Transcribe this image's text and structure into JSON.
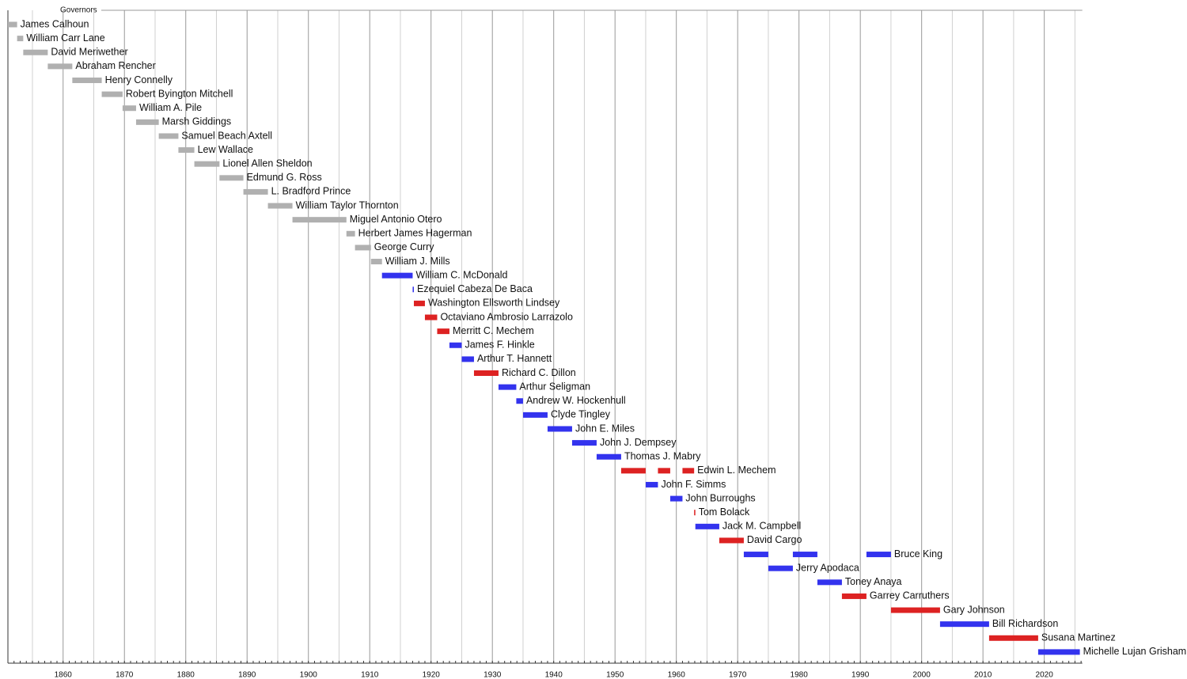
{
  "chart_data": {
    "type": "timeline",
    "title": "Governors",
    "xlim": [
      1851,
      2026.2
    ],
    "xticks": [
      1860,
      1870,
      1880,
      1890,
      1900,
      1910,
      1920,
      1930,
      1940,
      1950,
      1960,
      1970,
      1980,
      1990,
      2000,
      2010,
      2020
    ],
    "xminorticks": [
      1855,
      1865,
      1875,
      1885,
      1895,
      1905,
      1915,
      1925,
      1935,
      1945,
      1955,
      1965,
      1975,
      1985,
      1995,
      2005,
      2015,
      2025
    ],
    "small_tick_interval": 1,
    "grid": true,
    "rows": [
      {
        "label": "James Calhoun",
        "color": "#b0b0b0",
        "terms": [
          [
            1851,
            1852.5
          ]
        ]
      },
      {
        "label": "William Carr Lane",
        "color": "#b0b0b0",
        "terms": [
          [
            1852.5,
            1853.5
          ]
        ]
      },
      {
        "label": "David Meriwether",
        "color": "#b0b0b0",
        "terms": [
          [
            1853.5,
            1857.5
          ]
        ]
      },
      {
        "label": "Abraham Rencher",
        "color": "#b0b0b0",
        "terms": [
          [
            1857.5,
            1861.5
          ]
        ]
      },
      {
        "label": "Henry Connelly",
        "color": "#b0b0b0",
        "terms": [
          [
            1861.5,
            1866.3
          ]
        ]
      },
      {
        "label": "Robert Byington Mitchell",
        "color": "#b0b0b0",
        "terms": [
          [
            1866.3,
            1869.7
          ]
        ]
      },
      {
        "label": "William A. Pile",
        "color": "#b0b0b0",
        "terms": [
          [
            1869.7,
            1871.9
          ]
        ]
      },
      {
        "label": "Marsh Giddings",
        "color": "#b0b0b0",
        "terms": [
          [
            1871.9,
            1875.6
          ]
        ]
      },
      {
        "label": "Samuel Beach Axtell",
        "color": "#b0b0b0",
        "terms": [
          [
            1875.6,
            1878.8
          ]
        ]
      },
      {
        "label": "Lew Wallace",
        "color": "#b0b0b0",
        "terms": [
          [
            1878.8,
            1881.4
          ]
        ]
      },
      {
        "label": "Lionel Allen Sheldon",
        "color": "#b0b0b0",
        "terms": [
          [
            1881.4,
            1885.5
          ]
        ]
      },
      {
        "label": "Edmund G. Ross",
        "color": "#b0b0b0",
        "terms": [
          [
            1885.5,
            1889.4
          ]
        ]
      },
      {
        "label": "L. Bradford Prince",
        "color": "#b0b0b0",
        "terms": [
          [
            1889.4,
            1893.4
          ]
        ]
      },
      {
        "label": "William Taylor Thornton",
        "color": "#b0b0b0",
        "terms": [
          [
            1893.4,
            1897.4
          ]
        ]
      },
      {
        "label": "Miguel Antonio Otero",
        "color": "#b0b0b0",
        "terms": [
          [
            1897.4,
            1906.2
          ]
        ]
      },
      {
        "label": "Herbert James Hagerman",
        "color": "#b0b0b0",
        "terms": [
          [
            1906.2,
            1907.6
          ]
        ]
      },
      {
        "label": "George Curry",
        "color": "#b0b0b0",
        "terms": [
          [
            1907.6,
            1910.2
          ]
        ]
      },
      {
        "label": "William J. Mills",
        "color": "#b0b0b0",
        "terms": [
          [
            1910.2,
            1912
          ]
        ]
      },
      {
        "label": "William C. McDonald",
        "color": "#3333ee",
        "terms": [
          [
            1912,
            1917
          ]
        ]
      },
      {
        "label": "Ezequiel Cabeza De Baca",
        "color": "#3333ee",
        "terms": [
          [
            1917,
            1917.2
          ]
        ]
      },
      {
        "label": "Washington Ellsworth Lindsey",
        "color": "#dd2222",
        "terms": [
          [
            1917.2,
            1919
          ]
        ]
      },
      {
        "label": "Octaviano Ambrosio Larrazolo",
        "color": "#dd2222",
        "terms": [
          [
            1919,
            1921
          ]
        ]
      },
      {
        "label": "Merritt C. Mechem",
        "color": "#dd2222",
        "terms": [
          [
            1921,
            1923
          ]
        ]
      },
      {
        "label": "James F. Hinkle",
        "color": "#3333ee",
        "terms": [
          [
            1923,
            1925
          ]
        ]
      },
      {
        "label": "Arthur T. Hannett",
        "color": "#3333ee",
        "terms": [
          [
            1925,
            1927
          ]
        ]
      },
      {
        "label": "Richard C. Dillon",
        "color": "#dd2222",
        "terms": [
          [
            1927,
            1931
          ]
        ]
      },
      {
        "label": "Arthur Seligman",
        "color": "#3333ee",
        "terms": [
          [
            1931,
            1933.9
          ]
        ]
      },
      {
        "label": "Andrew W. Hockenhull",
        "color": "#3333ee",
        "terms": [
          [
            1933.9,
            1935
          ]
        ]
      },
      {
        "label": "Clyde Tingley",
        "color": "#3333ee",
        "terms": [
          [
            1935,
            1939
          ]
        ]
      },
      {
        "label": "John E. Miles",
        "color": "#3333ee",
        "terms": [
          [
            1939,
            1943
          ]
        ]
      },
      {
        "label": "John J. Dempsey",
        "color": "#3333ee",
        "terms": [
          [
            1943,
            1947
          ]
        ]
      },
      {
        "label": "Thomas J. Mabry",
        "color": "#3333ee",
        "terms": [
          [
            1947,
            1951
          ]
        ]
      },
      {
        "label": "Edwin L. Mechem",
        "color": "#dd2222",
        "terms": [
          [
            1951,
            1955
          ],
          [
            1957,
            1959
          ],
          [
            1961,
            1962.9
          ]
        ]
      },
      {
        "label": "John F. Simms",
        "color": "#3333ee",
        "terms": [
          [
            1955,
            1957
          ]
        ]
      },
      {
        "label": "John Burroughs",
        "color": "#3333ee",
        "terms": [
          [
            1959,
            1961
          ]
        ]
      },
      {
        "label": "Tom Bolack",
        "color": "#dd2222",
        "terms": [
          [
            1962.9,
            1963.1
          ]
        ]
      },
      {
        "label": "Jack M. Campbell",
        "color": "#3333ee",
        "terms": [
          [
            1963.1,
            1967
          ]
        ]
      },
      {
        "label": "David Cargo",
        "color": "#dd2222",
        "terms": [
          [
            1967,
            1971
          ]
        ]
      },
      {
        "label": "Bruce King",
        "color": "#3333ee",
        "terms": [
          [
            1971,
            1975
          ],
          [
            1979,
            1983
          ],
          [
            1991,
            1995
          ]
        ]
      },
      {
        "label": "Jerry Apodaca",
        "color": "#3333ee",
        "terms": [
          [
            1975,
            1979
          ]
        ]
      },
      {
        "label": "Toney Anaya",
        "color": "#3333ee",
        "terms": [
          [
            1983,
            1987
          ]
        ]
      },
      {
        "label": "Garrey Carruthers",
        "color": "#dd2222",
        "terms": [
          [
            1987,
            1991
          ]
        ]
      },
      {
        "label": "Gary Johnson",
        "color": "#dd2222",
        "terms": [
          [
            1995,
            2003
          ]
        ]
      },
      {
        "label": "Bill Richardson",
        "color": "#3333ee",
        "terms": [
          [
            2003,
            2011
          ]
        ]
      },
      {
        "label": "Susana Martinez",
        "color": "#dd2222",
        "terms": [
          [
            2011,
            2019
          ]
        ]
      },
      {
        "label": "Michelle Lujan Grisham",
        "color": "#3333ee",
        "terms": [
          [
            2019,
            2025.8
          ]
        ]
      }
    ]
  }
}
